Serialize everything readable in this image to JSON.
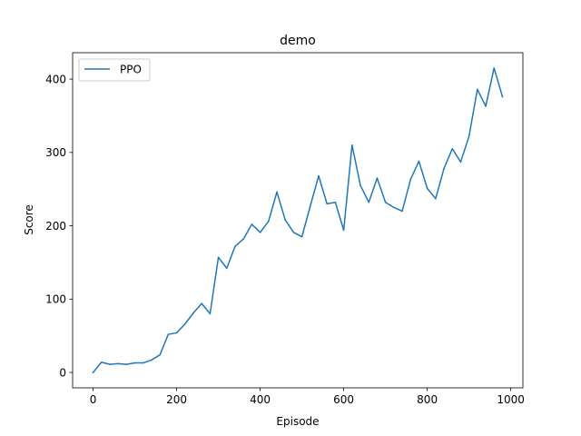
{
  "chart_data": {
    "type": "line",
    "title": "demo",
    "xlabel": "Episode",
    "ylabel": "Score",
    "xlim": [
      -49,
      1029
    ],
    "ylim": [
      -21,
      436
    ],
    "xticks": [
      0,
      200,
      400,
      600,
      800,
      1000
    ],
    "yticks": [
      0,
      100,
      200,
      300,
      400
    ],
    "legend": {
      "placement": "top-left",
      "entries": [
        "PPO"
      ]
    },
    "grid": false,
    "series": [
      {
        "name": "PPO",
        "color": "#1f77b4",
        "x": [
          0,
          20,
          40,
          60,
          80,
          100,
          120,
          140,
          160,
          180,
          200,
          220,
          240,
          260,
          280,
          300,
          320,
          340,
          360,
          380,
          400,
          420,
          440,
          460,
          480,
          500,
          520,
          540,
          560,
          580,
          600,
          620,
          640,
          660,
          680,
          700,
          720,
          740,
          760,
          780,
          800,
          820,
          840,
          860,
          880,
          900,
          920,
          940,
          960,
          980
        ],
        "y": [
          0,
          14,
          11,
          12,
          11,
          13,
          13,
          17,
          24,
          52,
          54,
          66,
          81,
          94,
          80,
          157,
          142,
          172,
          182,
          202,
          191,
          206,
          246,
          208,
          191,
          185,
          227,
          268,
          230,
          232,
          194,
          310,
          255,
          232,
          265,
          232,
          225,
          220,
          263,
          288,
          251,
          237,
          278,
          305,
          287,
          322,
          386,
          363,
          415,
          376
        ]
      }
    ]
  }
}
